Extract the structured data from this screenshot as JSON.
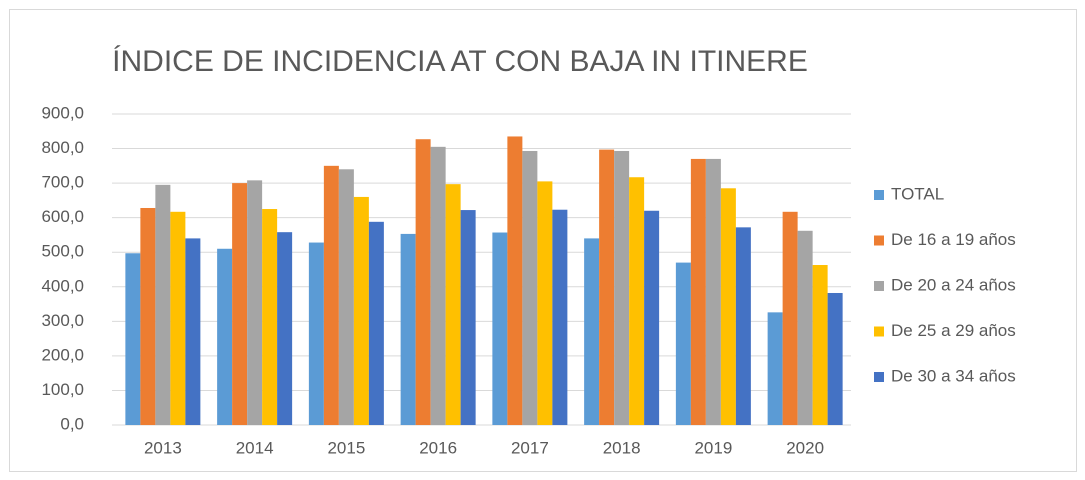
{
  "chart_data": {
    "type": "bar",
    "title": "ÍNDICE DE INCIDENCIA AT CON BAJA IN ITINERE",
    "categories": [
      "2013",
      "2014",
      "2015",
      "2016",
      "2017",
      "2018",
      "2019",
      "2020"
    ],
    "series": [
      {
        "name": "TOTAL",
        "color": "#5b9bd5",
        "values": [
          497,
          510,
          528,
          553,
          557,
          540,
          470,
          326
        ]
      },
      {
        "name": "De 16 a 19 años",
        "color": "#ed7d31",
        "values": [
          628,
          700,
          750,
          827,
          835,
          797,
          770,
          617
        ]
      },
      {
        "name": "De 20 a 24 años",
        "color": "#a5a5a5",
        "values": [
          695,
          708,
          740,
          805,
          793,
          793,
          770,
          562
        ]
      },
      {
        "name": "De 25 a 29 años",
        "color": "#ffc000",
        "values": [
          617,
          625,
          660,
          697,
          705,
          717,
          685,
          463
        ]
      },
      {
        "name": "De 30 a 34 años",
        "color": "#4472c4",
        "values": [
          540,
          558,
          588,
          622,
          623,
          620,
          572,
          382
        ]
      }
    ],
    "ylim": [
      0,
      900
    ],
    "yticks": [
      {
        "value": 0,
        "label": "0,0"
      },
      {
        "value": 100,
        "label": "100,0"
      },
      {
        "value": 200,
        "label": "200,0"
      },
      {
        "value": 300,
        "label": "300,0"
      },
      {
        "value": 400,
        "label": "400,0"
      },
      {
        "value": 500,
        "label": "500,0"
      },
      {
        "value": 600,
        "label": "600,0"
      },
      {
        "value": 700,
        "label": "700,0"
      },
      {
        "value": 800,
        "label": "800,0"
      },
      {
        "value": 900,
        "label": "900,0"
      }
    ],
    "grid": true,
    "legend": "right"
  }
}
